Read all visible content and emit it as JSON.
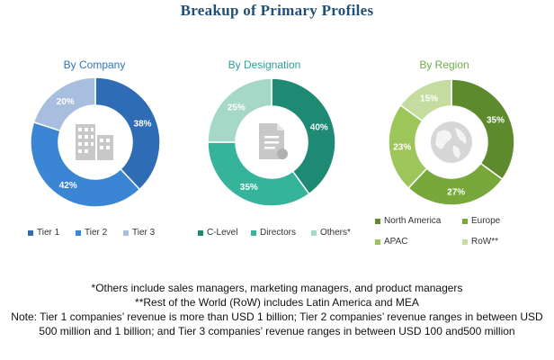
{
  "title": "Breakup of Primary Profiles",
  "colors": {
    "title": "#1f4e79",
    "company_title": "#2e75b6",
    "designation_title": "#2aa198",
    "region_title": "#70ad47"
  },
  "chart_data": [
    {
      "type": "pie",
      "title": "By Company",
      "icon": "building-icon",
      "series": [
        {
          "name": "Tier 1",
          "value": 38,
          "label": "38%",
          "color": "#2e6cb5"
        },
        {
          "name": "Tier 2",
          "value": 42,
          "label": "42%",
          "color": "#3a86d4"
        },
        {
          "name": "Tier 3",
          "value": 20,
          "label": "20%",
          "color": "#a8bedf"
        }
      ]
    },
    {
      "type": "pie",
      "title": "By Designation",
      "icon": "document-icon",
      "series": [
        {
          "name": "C-Level",
          "value": 40,
          "label": "40%",
          "color": "#1e8a73"
        },
        {
          "name": "Directors",
          "value": 35,
          "label": "35%",
          "color": "#36b49b"
        },
        {
          "name": "Others*",
          "value": 25,
          "label": "25%",
          "color": "#a6d8c8"
        }
      ]
    },
    {
      "type": "pie",
      "title": "By Region",
      "icon": "globe-icon",
      "series": [
        {
          "name": "North America",
          "value": 35,
          "label": "35%",
          "color": "#5e8a2e"
        },
        {
          "name": "Europe",
          "value": 27,
          "label": "27%",
          "color": "#78a83c"
        },
        {
          "name": "APAC",
          "value": 23,
          "label": "23%",
          "color": "#9cc55a"
        },
        {
          "name": "RoW**",
          "value": 15,
          "label": "15%",
          "color": "#c5dca0"
        }
      ]
    }
  ],
  "notes": [
    "*Others include sales managers, marketing managers, and product managers",
    "**Rest of the World (RoW) includes Latin America and MEA",
    "Note: Tier 1 companies’ revenue is more than USD 1 billion; Tier 2 companies’ revenue ranges in between USD 500 million and 1 billion; and Tier 3 companies’ revenue ranges in between USD 100 and500 million"
  ]
}
